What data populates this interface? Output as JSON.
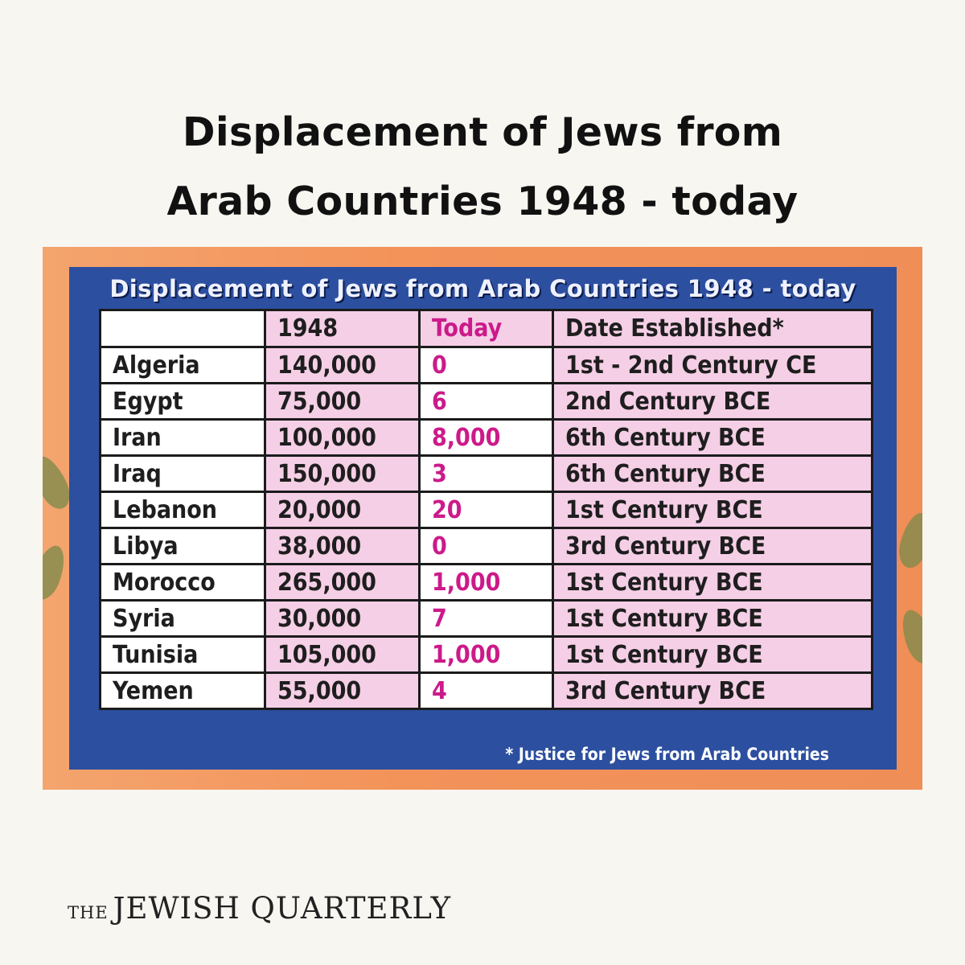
{
  "title": {
    "line1": "Displacement of Jews from",
    "line2": "Arab Countries 1948 - today"
  },
  "card": {
    "banner": "Displacement of Jews from Arab Countries 1948 - today",
    "columns": [
      "",
      "1948",
      "Today",
      "Date Established*"
    ],
    "rows": [
      {
        "country": "Algeria",
        "y1948": "140,000",
        "today": "0",
        "established": "1st - 2nd Century CE"
      },
      {
        "country": "Egypt",
        "y1948": "75,000",
        "today": "6",
        "established": "2nd Century BCE"
      },
      {
        "country": "Iran",
        "y1948": "100,000",
        "today": "8,000",
        "established": "6th Century BCE"
      },
      {
        "country": "Iraq",
        "y1948": "150,000",
        "today": "3",
        "established": "6th Century BCE"
      },
      {
        "country": "Lebanon",
        "y1948": "20,000",
        "today": "20",
        "established": "1st Century BCE"
      },
      {
        "country": "Libya",
        "y1948": "38,000",
        "today": "0",
        "established": "3rd Century BCE"
      },
      {
        "country": "Morocco",
        "y1948": "265,000",
        "today": "1,000",
        "established": "1st Century BCE"
      },
      {
        "country": "Syria",
        "y1948": "30,000",
        "today": "7",
        "established": "1st Century BCE"
      },
      {
        "country": "Tunisia",
        "y1948": "105,000",
        "today": "1,000",
        "established": "1st Century BCE"
      },
      {
        "country": "Yemen",
        "y1948": "55,000",
        "today": "4",
        "established": "3rd Century BCE"
      }
    ],
    "footnote": "* Justice for Jews from Arab Countries"
  },
  "brand": {
    "prefix": "THE",
    "name": "JEWISH QUARTERLY"
  },
  "colors": {
    "page_background": "#f8f6f1",
    "card_orange": "#f3935a",
    "panel_blue": "#2c4fa0",
    "cell_pink": "#f5cfe6",
    "today_magenta": "#cc1a8a"
  }
}
